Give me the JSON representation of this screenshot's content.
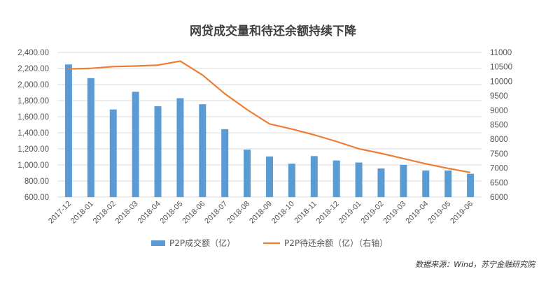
{
  "title": "网贷成交量和待还余额持续下降",
  "source": "数据来源：Wind，苏宁金融研究院",
  "colors": {
    "bar": "#5b9bd5",
    "line": "#ed7d31",
    "grid": "#d9d9d9"
  },
  "chart_data": {
    "type": "bar",
    "categories": [
      "2017-12",
      "2018-01",
      "2018-02",
      "2018-03",
      "2018-04",
      "2018-05",
      "2018-06",
      "2018-07",
      "2018-08",
      "2018-09",
      "2018-10",
      "2018-11",
      "2018-12",
      "2019-01",
      "2019-02",
      "2019-03",
      "2019-04",
      "2019-05",
      "2019-06"
    ],
    "series": [
      {
        "name": "P2P成交额（亿）",
        "type": "bar",
        "axis": "left",
        "values": [
          2250,
          2080,
          1690,
          1910,
          1730,
          1830,
          1755,
          1445,
          1190,
          1105,
          1015,
          1110,
          1055,
          1030,
          955,
          1000,
          930,
          930,
          890
        ]
      },
      {
        "name": "P2P待还余额（亿）（右轴）",
        "type": "line",
        "axis": "right",
        "values": [
          10430,
          10450,
          10510,
          10530,
          10560,
          10700,
          10220,
          9570,
          9020,
          8530,
          8350,
          8150,
          7920,
          7670,
          7510,
          7330,
          7150,
          6990,
          6850
        ]
      }
    ],
    "y_left": {
      "min": 600,
      "max": 2400,
      "step": 200,
      "ticks": [
        "600.00",
        "800.00",
        "1,000.00",
        "1,200.00",
        "1,400.00",
        "1,600.00",
        "1,800.00",
        "2,000.00",
        "2,200.00",
        "2,400.00"
      ]
    },
    "y_right": {
      "min": 6000,
      "max": 11000,
      "step": 500,
      "ticks": [
        "6000",
        "6500",
        "7000",
        "7500",
        "8000",
        "8500",
        "9000",
        "9500",
        "10000",
        "10500",
        "11000"
      ]
    },
    "grid": true,
    "legend_position": "bottom"
  }
}
